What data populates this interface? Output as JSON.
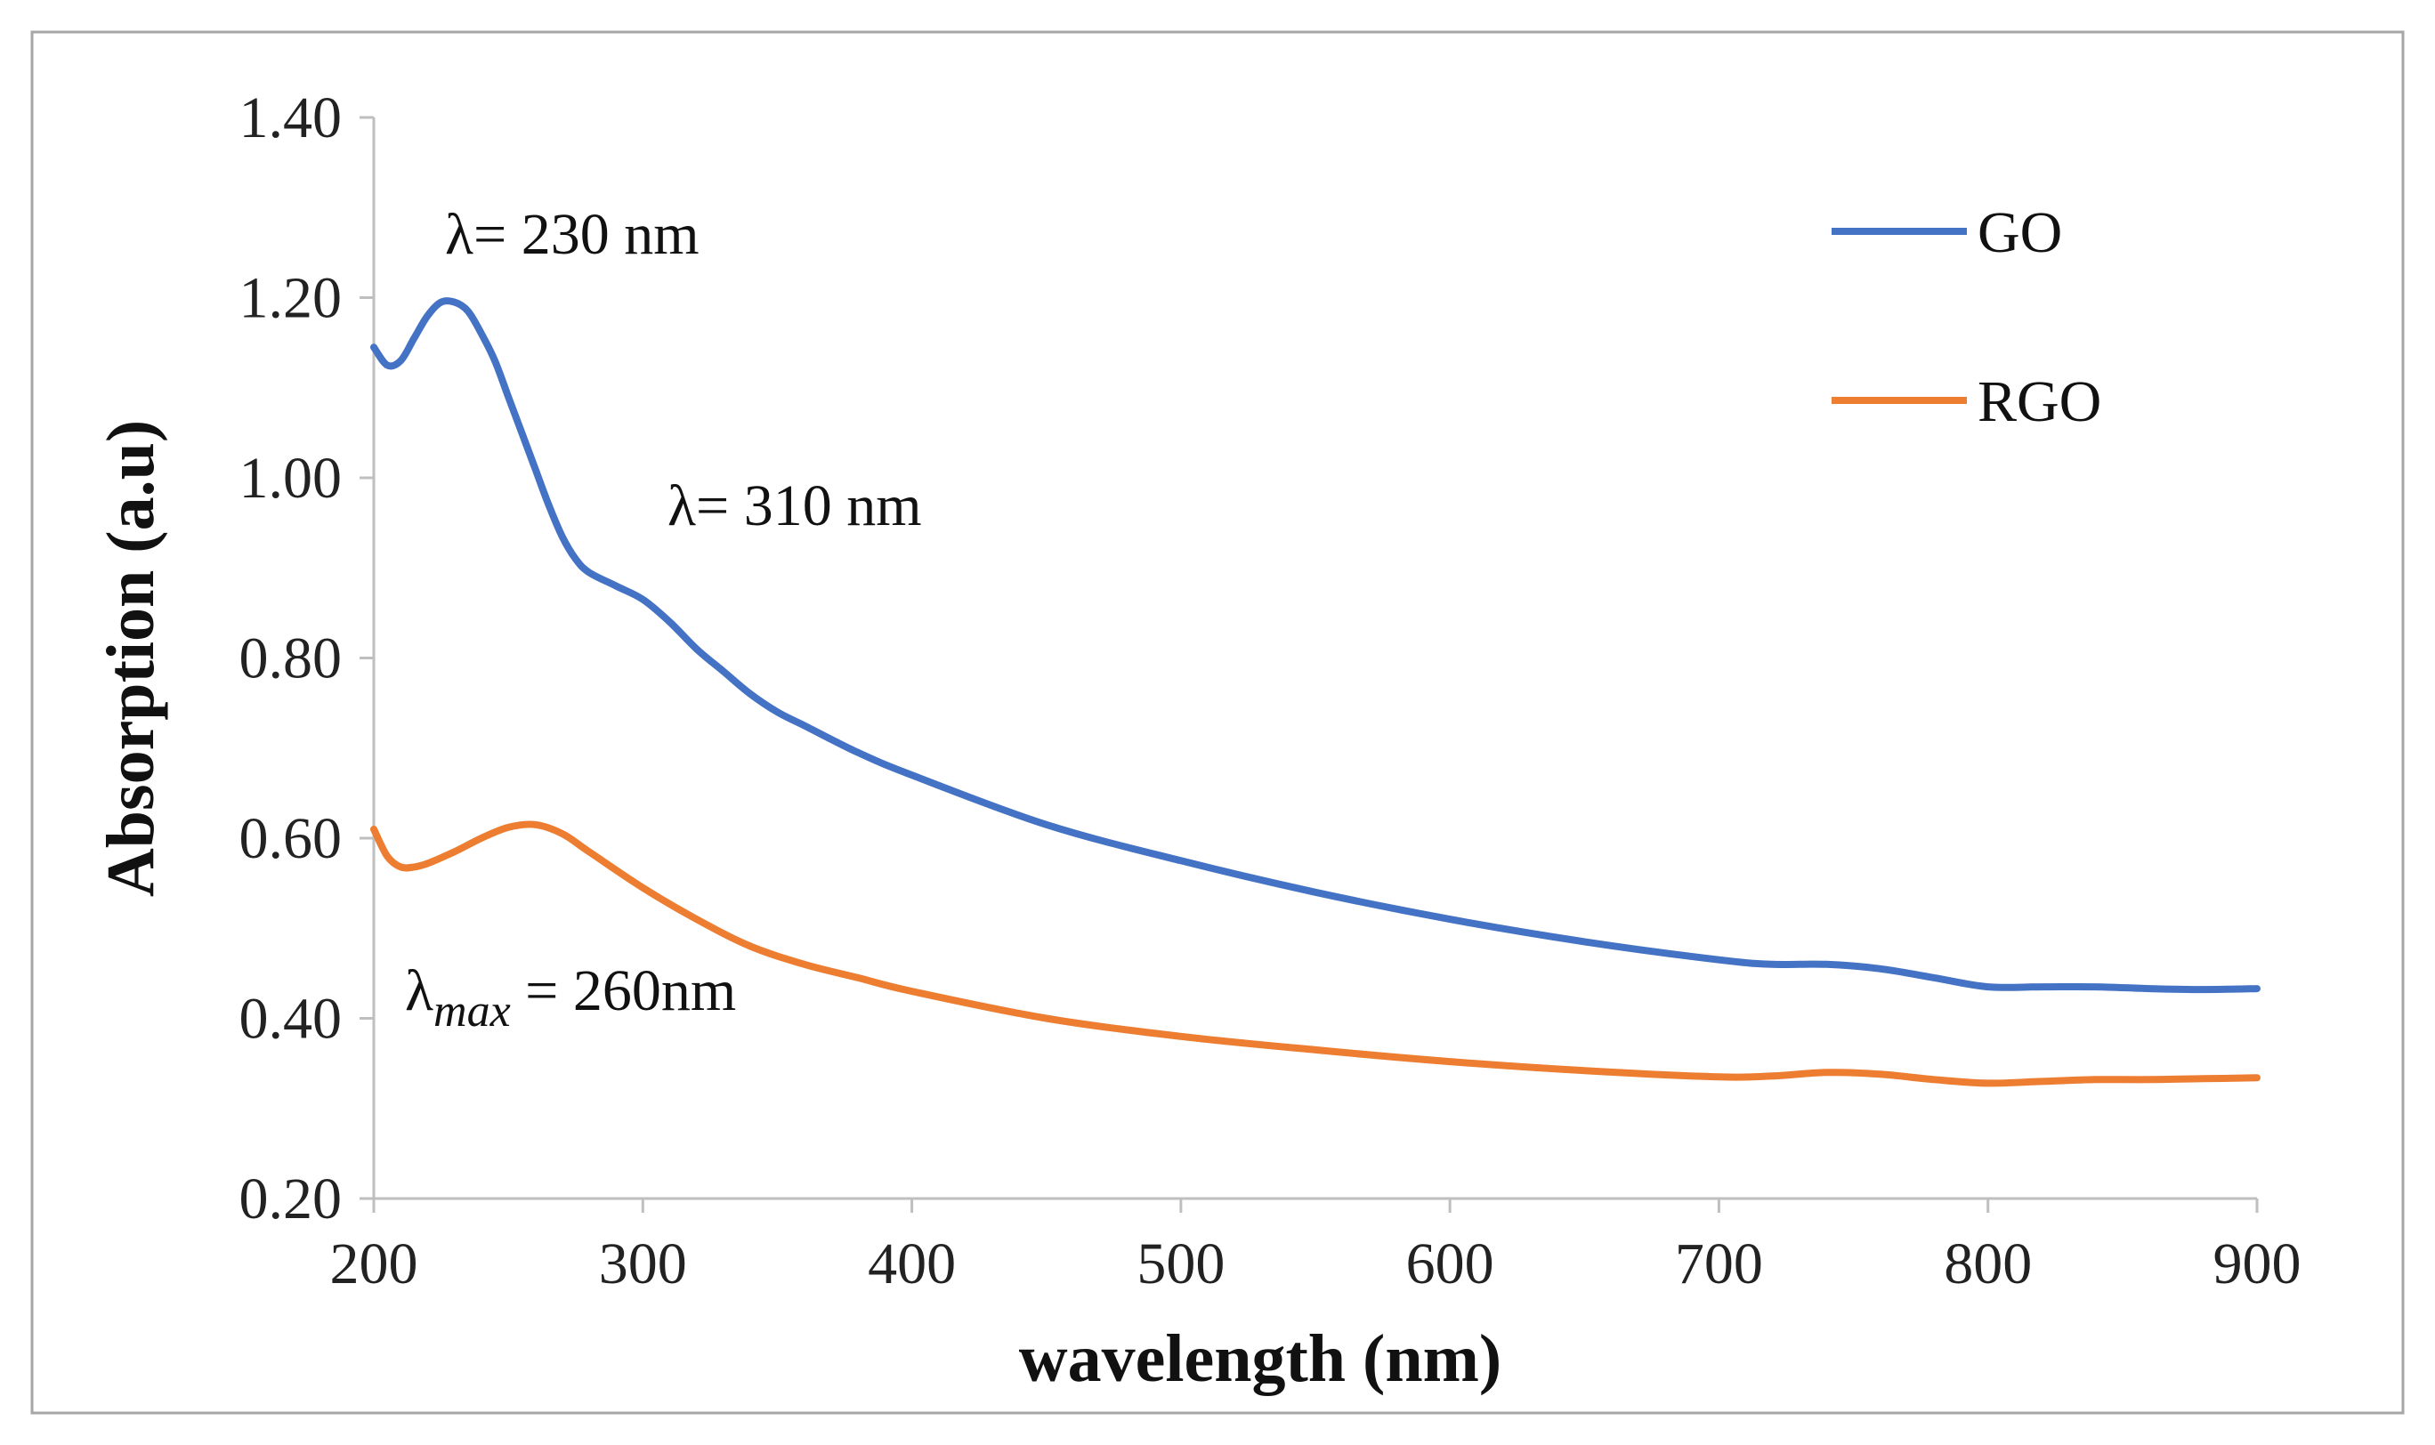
{
  "chart_data": {
    "type": "line",
    "title": "",
    "xlabel": "wavelength (nm)",
    "ylabel": "Absorption (a.u)",
    "xlim": [
      200,
      900
    ],
    "ylim": [
      0.2,
      1.4
    ],
    "x_ticks": [
      200,
      300,
      400,
      500,
      600,
      700,
      800,
      900
    ],
    "x_tick_labels": [
      "200",
      "300",
      "400",
      "500",
      "600",
      "700",
      "800",
      "900"
    ],
    "y_ticks": [
      0.2,
      0.4,
      0.6,
      0.8,
      1.0,
      1.2,
      1.4
    ],
    "y_tick_labels": [
      "0.20",
      "0.40",
      "0.60",
      "0.80",
      "1.00",
      "1.20",
      "1.40"
    ],
    "grid": false,
    "legend_position": "top-right",
    "series": [
      {
        "name": "GO",
        "color": "#4472c4",
        "x": [
          200,
          205,
          210,
          215,
          220,
          225,
          230,
          235,
          240,
          245,
          250,
          255,
          260,
          265,
          270,
          275,
          280,
          290,
          300,
          310,
          320,
          330,
          340,
          350,
          360,
          380,
          400,
          450,
          500,
          550,
          600,
          650,
          700,
          720,
          740,
          760,
          780,
          800,
          820,
          840,
          860,
          880,
          900
        ],
        "values": [
          1.145,
          1.125,
          1.13,
          1.155,
          1.18,
          1.195,
          1.195,
          1.185,
          1.16,
          1.13,
          1.09,
          1.05,
          1.01,
          0.97,
          0.935,
          0.91,
          0.895,
          0.88,
          0.865,
          0.84,
          0.81,
          0.785,
          0.76,
          0.74,
          0.725,
          0.695,
          0.67,
          0.615,
          0.575,
          0.54,
          0.51,
          0.485,
          0.465,
          0.46,
          0.46,
          0.455,
          0.445,
          0.435,
          0.435,
          0.435,
          0.433,
          0.432,
          0.433
        ]
      },
      {
        "name": "RGO",
        "color": "#ed7d31",
        "x": [
          200,
          205,
          210,
          215,
          220,
          230,
          240,
          250,
          260,
          270,
          280,
          300,
          320,
          340,
          360,
          380,
          400,
          450,
          500,
          550,
          600,
          650,
          700,
          720,
          740,
          760,
          780,
          800,
          820,
          840,
          860,
          880,
          900
        ],
        "values": [
          0.61,
          0.58,
          0.568,
          0.568,
          0.572,
          0.585,
          0.6,
          0.612,
          0.615,
          0.605,
          0.585,
          0.545,
          0.51,
          0.48,
          0.46,
          0.445,
          0.43,
          0.4,
          0.38,
          0.365,
          0.352,
          0.342,
          0.335,
          0.336,
          0.34,
          0.338,
          0.332,
          0.328,
          0.33,
          0.332,
          0.332,
          0.333,
          0.334
        ]
      }
    ],
    "annotations": [
      {
        "id": "go-peak-1",
        "text": "λ= 230 nm"
      },
      {
        "id": "go-peak-2",
        "text": "λ= 310 nm"
      },
      {
        "id": "rgo-peak",
        "prefix": "λ",
        "subscript": "max",
        "suffix": " = 260nm"
      }
    ]
  }
}
